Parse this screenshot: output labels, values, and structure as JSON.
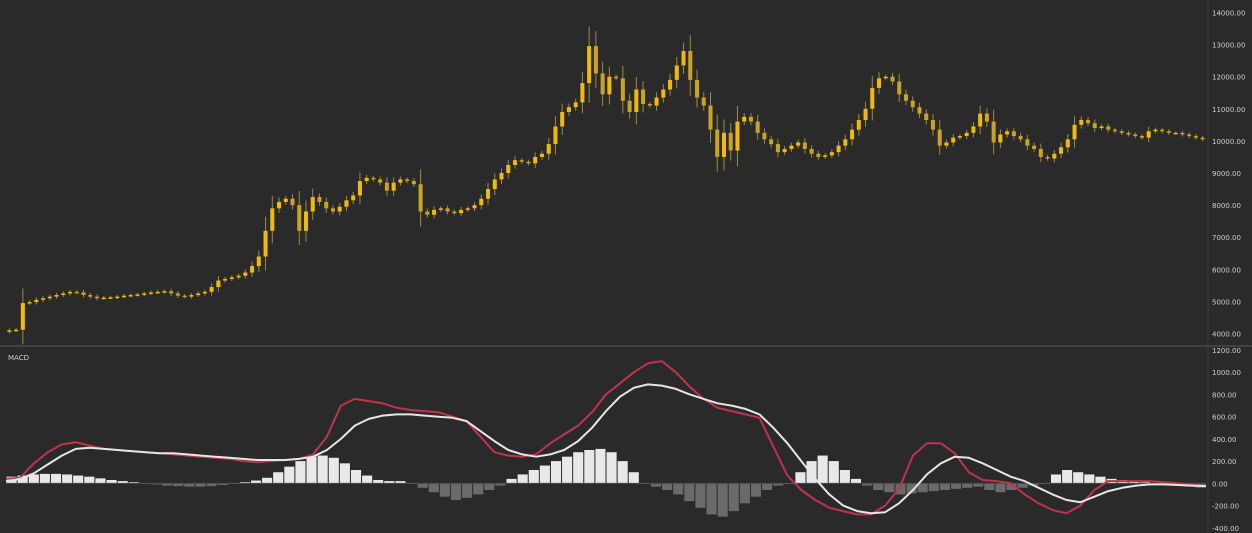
{
  "chart_data": [
    {
      "type": "candlestick",
      "title": "",
      "ylim": [
        3800,
        14200
      ],
      "yticks": [
        "14000.00",
        "13000.00",
        "12000.00",
        "11000.00",
        "10000.00",
        "9000.00",
        "8000.00",
        "7000.00",
        "6000.00",
        "5000.00",
        "4000.00"
      ],
      "ytick_values": [
        14000,
        13000,
        12000,
        11000,
        10000,
        9000,
        8000,
        7000,
        6000,
        5000,
        4000
      ],
      "colors": {
        "up": "#f0b90b",
        "down": "#c9a227",
        "wick": "#a08a40",
        "background": "#2a2a2a"
      },
      "close": [
        4100,
        4120,
        4950,
        4980,
        5050,
        5100,
        5150,
        5200,
        5250,
        5300,
        5280,
        5200,
        5150,
        5100,
        5120,
        5130,
        5150,
        5180,
        5200,
        5220,
        5250,
        5280,
        5300,
        5320,
        5250,
        5180,
        5150,
        5200,
        5250,
        5300,
        5450,
        5650,
        5700,
        5750,
        5800,
        5900,
        6100,
        6400,
        7200,
        7900,
        8100,
        8200,
        8000,
        7200,
        7800,
        8250,
        8100,
        7900,
        7800,
        7950,
        8150,
        8300,
        8750,
        8850,
        8800,
        8700,
        8450,
        8700,
        8800,
        8750,
        8650,
        7800,
        7700,
        7850,
        7900,
        7800,
        7750,
        7850,
        7900,
        8000,
        8200,
        8500,
        8800,
        9000,
        9250,
        9400,
        9350,
        9300,
        9500,
        9600,
        9900,
        10450,
        10900,
        11050,
        11200,
        11800,
        12950,
        12100,
        11450,
        12000,
        11950,
        11250,
        10900,
        11600,
        11150,
        11100,
        11350,
        11600,
        11900,
        12350,
        12800,
        11900,
        11350,
        11100,
        10350,
        9500,
        10250,
        9700,
        10600,
        10750,
        10600,
        10250,
        10050,
        9900,
        9650,
        9750,
        9850,
        9950,
        9750,
        9600,
        9500,
        9550,
        9650,
        9850,
        10050,
        10350,
        10650,
        11000,
        11650,
        11950,
        12000,
        11850,
        11450,
        11250,
        11050,
        10850,
        10650,
        10350,
        9850,
        9950,
        10100,
        10150,
        10250,
        10450,
        10850,
        10600,
        9950,
        10200,
        10300,
        10150,
        10050,
        9850,
        9750,
        9500,
        9450,
        9600,
        9800,
        10050,
        10500,
        10650,
        10550,
        10400,
        10450,
        10350,
        10300,
        10250,
        10200,
        10150,
        10100,
        10300,
        10350,
        10300,
        10250,
        10250,
        10200,
        10150,
        10100,
        10050
      ]
    },
    {
      "type": "line",
      "title": "",
      "label": "MACD",
      "ylim": [
        -420,
        1200
      ],
      "yticks": [
        "1200.00",
        "1000.00",
        "800.00",
        "600.00",
        "400.00",
        "200.00",
        "0.00",
        "-200.00",
        "-400.00"
      ],
      "ytick_values": [
        1200,
        1000,
        800,
        600,
        400,
        200,
        0,
        -200,
        -400
      ],
      "series": [
        {
          "color": "#c0334d",
          "values": [
            40,
            50,
            180,
            280,
            350,
            370,
            340,
            310,
            300,
            290,
            280,
            270,
            260,
            250,
            240,
            230,
            220,
            200,
            190,
            200,
            210,
            220,
            260,
            420,
            700,
            760,
            740,
            720,
            680,
            660,
            650,
            640,
            600,
            560,
            420,
            280,
            250,
            240,
            260,
            360,
            440,
            520,
            640,
            800,
            900,
            1000,
            1080,
            1100,
            1000,
            870,
            760,
            680,
            650,
            620,
            590,
            330,
            70,
            -60,
            -150,
            -220,
            -250,
            -280,
            -280,
            -200,
            -50,
            250,
            360,
            360,
            270,
            100,
            30,
            20,
            0,
            -100,
            -180,
            -240,
            -270,
            -200,
            -60,
            20,
            20,
            20,
            20,
            10,
            0,
            -10,
            -30
          ]
        },
        {
          "color": "#e6e6e6",
          "values": [
            20,
            40,
            90,
            170,
            250,
            310,
            320,
            310,
            300,
            290,
            280,
            270,
            270,
            260,
            250,
            240,
            230,
            220,
            210,
            210,
            210,
            220,
            240,
            300,
            400,
            520,
            580,
            610,
            620,
            620,
            610,
            600,
            590,
            560,
            470,
            380,
            300,
            260,
            240,
            260,
            300,
            380,
            500,
            650,
            780,
            860,
            890,
            880,
            850,
            800,
            760,
            720,
            700,
            670,
            620,
            500,
            360,
            200,
            40,
            -100,
            -200,
            -250,
            -270,
            -260,
            -180,
            -60,
            80,
            180,
            240,
            230,
            180,
            120,
            60,
            20,
            -40,
            -100,
            -150,
            -170,
            -120,
            -70,
            -40,
            -20,
            -10,
            -10,
            -15,
            -20,
            -25
          ]
        }
      ],
      "hist": [
        60,
        70,
        80,
        85,
        85,
        80,
        70,
        60,
        45,
        30,
        20,
        10,
        0,
        -10,
        -20,
        -25,
        -30,
        -30,
        -25,
        -15,
        0,
        10,
        25,
        50,
        100,
        150,
        200,
        240,
        250,
        230,
        180,
        120,
        70,
        30,
        20,
        20,
        0,
        -40,
        -80,
        -120,
        -150,
        -130,
        -100,
        -60,
        -20,
        40,
        80,
        120,
        160,
        200,
        240,
        280,
        300,
        310,
        280,
        200,
        100,
        0,
        -30,
        -60,
        -100,
        -160,
        -220,
        -280,
        -300,
        -250,
        -180,
        -120,
        -60,
        -20,
        0,
        100,
        200,
        250,
        200,
        120,
        40,
        -20,
        -60,
        -80,
        -100,
        -90,
        -80,
        -70,
        -60,
        -50,
        -40,
        -30,
        -60,
        -80,
        -60,
        -40,
        -20,
        0,
        80,
        120,
        100,
        80,
        60,
        40,
        30,
        20,
        10,
        0,
        -10,
        -20,
        -30,
        -40
      ]
    }
  ]
}
